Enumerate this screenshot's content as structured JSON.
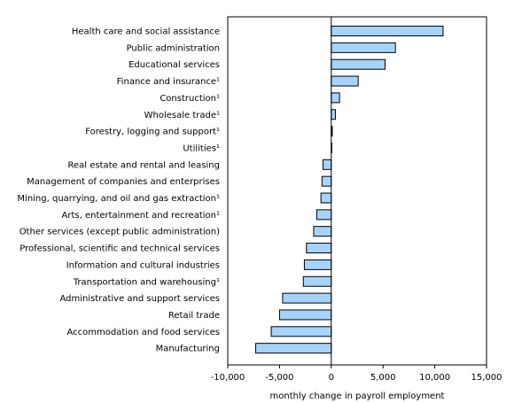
{
  "chart_data": {
    "type": "bar",
    "orientation": "horizontal",
    "categories": [
      "Health care and social assistance",
      "Public administration",
      "Educational services",
      "Finance and insurance¹",
      "Construction¹",
      "Wholesale trade¹",
      "Forestry, logging and support¹",
      "Utilities¹",
      "Real estate and rental and leasing",
      "Management of companies and enterprises",
      "Mining, quarrying, and oil and gas extraction¹",
      "Arts, entertainment and recreation¹",
      "Other services (except public administration)",
      "Professional, scientific and technical services",
      "Information and cultural industries",
      "Transportation and warehousing¹",
      "Administrative and support services",
      "Retail trade",
      "Accommodation and food services",
      "Manufacturing"
    ],
    "values": [
      10800,
      6200,
      5200,
      2600,
      800,
      400,
      100,
      50,
      -800,
      -900,
      -1000,
      -1400,
      -1700,
      -2400,
      -2600,
      -2700,
      -4700,
      -5000,
      -5800,
      -7300
    ],
    "xlabel": "monthly change in payroll employment",
    "xlim": [
      -10000,
      15000
    ],
    "xticks": [
      -10000,
      -5000,
      0,
      5000,
      10000,
      15000
    ],
    "xtick_labels": [
      "-10,000",
      "-5,000",
      "0",
      "5,000",
      "10,000",
      "15,000"
    ],
    "grid": false,
    "bar_color": "#a6d3fb"
  }
}
